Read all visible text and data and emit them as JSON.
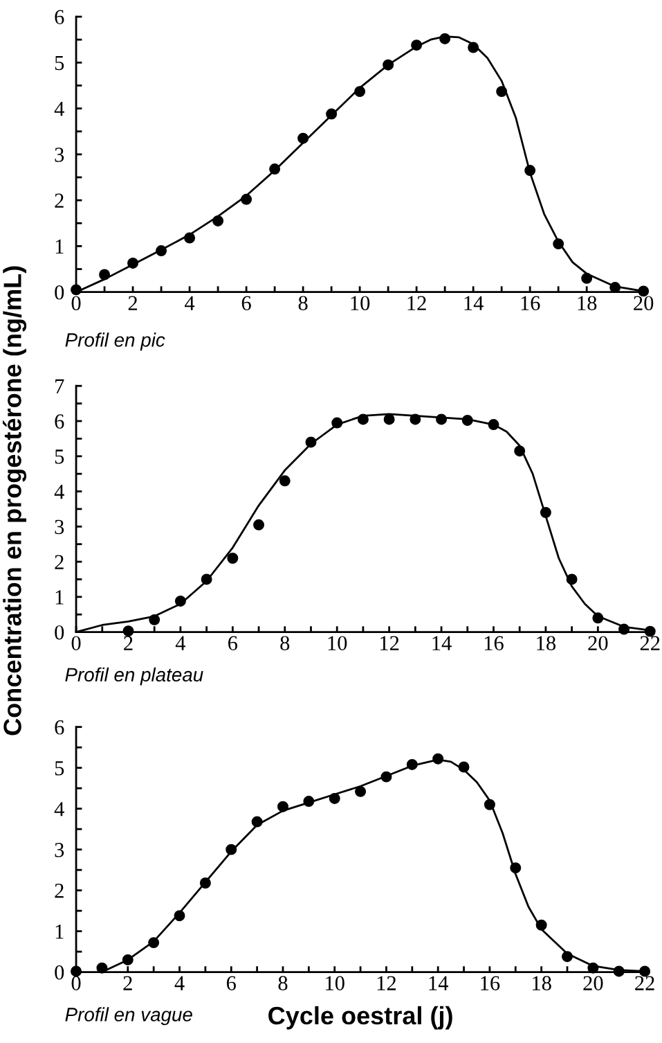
{
  "chart_data": [
    {
      "type": "scatter",
      "annotations": [
        "Profil en pic"
      ],
      "marker": "circle",
      "xlim": [
        0,
        20
      ],
      "ylim": [
        0,
        6
      ],
      "xticks": [
        0,
        {
          "value": 1,
          "label": null
        },
        2,
        {
          "value": 3,
          "label": null
        },
        4,
        {
          "value": 5,
          "label": null
        },
        6,
        {
          "value": 7,
          "label": null
        },
        8,
        {
          "value": 9,
          "label": null
        },
        10,
        {
          "value": 11,
          "label": null
        },
        12,
        {
          "value": 13,
          "label": null
        },
        14,
        {
          "value": 15,
          "label": null
        },
        16,
        {
          "value": 17,
          "label": null
        },
        18,
        {
          "value": 19,
          "label": null
        },
        20
      ],
      "yticks": [
        0,
        {
          "value": 0.5,
          "label": null
        },
        1,
        {
          "value": 1.5,
          "label": null
        },
        2,
        {
          "value": 2.5,
          "label": null
        },
        3,
        {
          "value": 3.5,
          "label": null
        },
        4,
        {
          "value": 4.5,
          "label": null
        },
        5,
        {
          "value": 5.5,
          "label": null
        },
        6
      ],
      "series": [
        {
          "color": "#000000",
          "x": [
            0,
            1,
            2,
            3,
            4,
            5,
            6,
            7,
            8,
            9,
            10,
            11,
            12,
            13,
            14,
            15,
            16,
            17,
            18,
            19,
            20
          ],
          "values": [
            0.05,
            0.38,
            0.63,
            0.9,
            1.18,
            1.55,
            2.02,
            2.68,
            3.35,
            3.88,
            4.37,
            4.95,
            5.38,
            5.52,
            5.33,
            4.37,
            2.65,
            1.05,
            0.3,
            0.1,
            0.02
          ]
        },
        {
          "type": "line",
          "color": "#000000",
          "marker": "none",
          "x": [
            0,
            1,
            2,
            3,
            4,
            5,
            6,
            7,
            8,
            9,
            10,
            11,
            12,
            12.5,
            13,
            13.5,
            14,
            14.5,
            15,
            15.5,
            16,
            16.5,
            17,
            17.5,
            18,
            19,
            20
          ],
          "values": [
            0,
            0.28,
            0.6,
            0.92,
            1.25,
            1.65,
            2.1,
            2.65,
            3.25,
            3.85,
            4.45,
            4.95,
            5.35,
            5.5,
            5.57,
            5.55,
            5.4,
            5.1,
            4.6,
            3.8,
            2.6,
            1.7,
            1.1,
            0.65,
            0.4,
            0.12,
            0.02
          ]
        }
      ]
    },
    {
      "type": "scatter",
      "annotations": [
        "Profil en plateau"
      ],
      "marker": "circle",
      "ylabel": "Concentration en progestérone (ng/mL)",
      "xlim": [
        0,
        22
      ],
      "ylim": [
        0,
        7
      ],
      "xticks": [
        0,
        {
          "value": 1,
          "label": null
        },
        2,
        {
          "value": 3,
          "label": null
        },
        4,
        {
          "value": 5,
          "label": null
        },
        6,
        {
          "value": 7,
          "label": null
        },
        8,
        {
          "value": 9,
          "label": null
        },
        10,
        {
          "value": 11,
          "label": null
        },
        12,
        {
          "value": 13,
          "label": null
        },
        14,
        {
          "value": 15,
          "label": null
        },
        16,
        {
          "value": 17,
          "label": null
        },
        18,
        {
          "value": 19,
          "label": null
        },
        20,
        {
          "value": 21,
          "label": null
        },
        22
      ],
      "yticks": [
        0,
        {
          "value": 0.5,
          "label": null
        },
        1,
        {
          "value": 1.5,
          "label": null
        },
        2,
        {
          "value": 2.5,
          "label": null
        },
        3,
        {
          "value": 3.5,
          "label": null
        },
        4,
        {
          "value": 4.5,
          "label": null
        },
        5,
        {
          "value": 5.5,
          "label": null
        },
        6,
        {
          "value": 6.5,
          "label": null
        },
        7
      ],
      "series": [
        {
          "color": "#000000",
          "x": [
            2,
            3,
            4,
            5,
            6,
            7,
            8,
            9,
            10,
            11,
            12,
            13,
            14,
            15,
            16,
            17,
            18,
            19,
            20,
            21,
            22
          ],
          "values": [
            0.03,
            0.35,
            0.88,
            1.5,
            2.1,
            3.05,
            4.3,
            5.4,
            5.95,
            6.05,
            6.05,
            6.05,
            6.05,
            6.02,
            5.9,
            5.15,
            3.4,
            1.5,
            0.4,
            0.08,
            0.02
          ]
        },
        {
          "type": "line",
          "color": "#000000",
          "marker": "none",
          "x": [
            0,
            1,
            2,
            3,
            4,
            5,
            6,
            7,
            8,
            9,
            10,
            11,
            12,
            13,
            14,
            15,
            16,
            16.5,
            17,
            17.5,
            18,
            18.5,
            19,
            19.5,
            20,
            21,
            22
          ],
          "values": [
            0,
            0.2,
            0.3,
            0.45,
            0.8,
            1.45,
            2.4,
            3.6,
            4.6,
            5.35,
            5.9,
            6.15,
            6.2,
            6.15,
            6.1,
            6.05,
            5.9,
            5.7,
            5.3,
            4.5,
            3.3,
            2.1,
            1.3,
            0.8,
            0.45,
            0.15,
            0.05
          ]
        }
      ]
    },
    {
      "type": "scatter",
      "annotations": [
        "Profil en vague"
      ],
      "marker": "circle",
      "xlabel": "Cycle oestral (j)",
      "xlim": [
        0,
        22
      ],
      "ylim": [
        0,
        6
      ],
      "xticks": [
        0,
        {
          "value": 1,
          "label": null
        },
        2,
        {
          "value": 3,
          "label": null
        },
        4,
        {
          "value": 5,
          "label": null
        },
        6,
        {
          "value": 7,
          "label": null
        },
        8,
        {
          "value": 9,
          "label": null
        },
        10,
        {
          "value": 11,
          "label": null
        },
        12,
        {
          "value": 13,
          "label": null
        },
        14,
        {
          "value": 15,
          "label": null
        },
        16,
        {
          "value": 17,
          "label": null
        },
        18,
        {
          "value": 19,
          "label": null
        },
        20,
        {
          "value": 21,
          "label": null
        },
        22
      ],
      "yticks": [
        0,
        {
          "value": 0.5,
          "label": null
        },
        1,
        {
          "value": 1.5,
          "label": null
        },
        2,
        {
          "value": 2.5,
          "label": null
        },
        3,
        {
          "value": 3.5,
          "label": null
        },
        4,
        {
          "value": 4.5,
          "label": null
        },
        5,
        {
          "value": 5.5,
          "label": null
        },
        6
      ],
      "series": [
        {
          "color": "#000000",
          "x": [
            0,
            1,
            2,
            3,
            4,
            5,
            6,
            7,
            8,
            9,
            10,
            11,
            12,
            13,
            14,
            15,
            16,
            17,
            18,
            19,
            20,
            21,
            22
          ],
          "values": [
            0.02,
            0.1,
            0.3,
            0.72,
            1.38,
            2.18,
            3.0,
            3.68,
            4.05,
            4.18,
            4.25,
            4.42,
            4.78,
            5.08,
            5.22,
            5.02,
            4.1,
            2.55,
            1.15,
            0.38,
            0.1,
            0.02,
            0.02
          ]
        },
        {
          "type": "line",
          "color": "#000000",
          "marker": "none",
          "x": [
            1,
            2,
            3,
            4,
            5,
            6,
            7,
            8,
            9,
            10,
            11,
            12,
            13,
            14,
            14.5,
            15,
            15.5,
            16,
            16.5,
            17,
            17.5,
            18,
            19,
            20,
            21,
            22
          ],
          "values": [
            0,
            0.3,
            0.75,
            1.45,
            2.2,
            2.95,
            3.6,
            3.95,
            4.15,
            4.35,
            4.55,
            4.8,
            5.05,
            5.2,
            5.15,
            4.95,
            4.65,
            4.2,
            3.4,
            2.4,
            1.6,
            1.05,
            0.45,
            0.15,
            0.05,
            0.02
          ]
        }
      ]
    }
  ]
}
